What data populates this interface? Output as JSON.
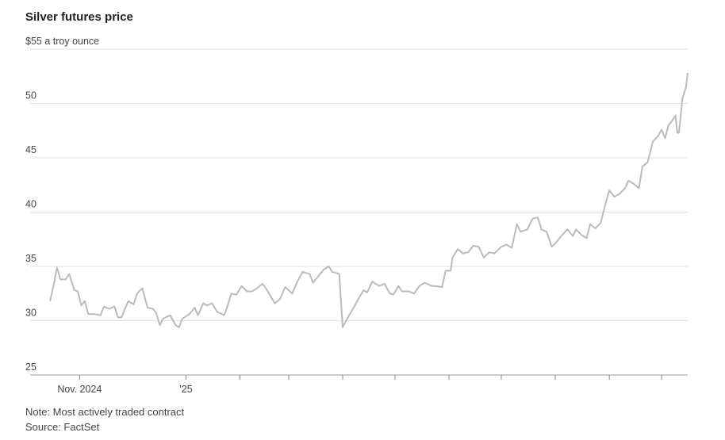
{
  "chart_data": {
    "type": "line",
    "title": "Silver futures price",
    "note": "Note: Most actively traded contract",
    "source": "Source: FactSet",
    "x": [
      "2024-10-15",
      "2024-10-17",
      "2024-10-19",
      "2024-10-21",
      "2024-10-24",
      "2024-10-26",
      "2024-10-29",
      "2024-10-31",
      "2024-11-02",
      "2024-11-04",
      "2024-11-06",
      "2024-11-10",
      "2024-11-13",
      "2024-11-15",
      "2024-11-18",
      "2024-11-21",
      "2024-11-23",
      "2024-11-25",
      "2024-11-27",
      "2024-11-29",
      "2024-12-02",
      "2024-12-04",
      "2024-12-07",
      "2024-12-10",
      "2024-12-13",
      "2024-12-15",
      "2024-12-17",
      "2024-12-19",
      "2024-12-23",
      "2024-12-26",
      "2024-12-28",
      "2024-12-30",
      "2025-01-03",
      "2025-01-06",
      "2025-01-08",
      "2025-01-11",
      "2025-01-13",
      "2025-01-16",
      "2025-01-19",
      "2025-01-23",
      "2025-01-25",
      "2025-01-27",
      "2025-01-30",
      "2025-02-02",
      "2025-02-05",
      "2025-02-08",
      "2025-02-11",
      "2025-02-14",
      "2025-02-17",
      "2025-02-21",
      "2025-02-24",
      "2025-02-27",
      "2025-03-03",
      "2025-03-06",
      "2025-03-09",
      "2025-03-13",
      "2025-03-15",
      "2025-03-19",
      "2025-03-21",
      "2025-03-24",
      "2025-03-26",
      "2025-03-30",
      "2025-04-01",
      "2025-04-04",
      "2025-04-08",
      "2025-04-10",
      "2025-04-13",
      "2025-04-15",
      "2025-04-18",
      "2025-04-22",
      "2025-04-25",
      "2025-04-28",
      "2025-04-30",
      "2025-05-03",
      "2025-05-05",
      "2025-05-09",
      "2025-05-12",
      "2025-05-15",
      "2025-05-18",
      "2025-05-22",
      "2025-05-24",
      "2025-05-28",
      "2025-05-30",
      "2025-06-02",
      "2025-06-03",
      "2025-06-06",
      "2025-06-09",
      "2025-06-12",
      "2025-06-15",
      "2025-06-18",
      "2025-06-21",
      "2025-06-24",
      "2025-06-27",
      "2025-07-01",
      "2025-07-04",
      "2025-07-07",
      "2025-07-10",
      "2025-07-12",
      "2025-07-16",
      "2025-07-19",
      "2025-07-22",
      "2025-07-24",
      "2025-07-27",
      "2025-07-30",
      "2025-08-02",
      "2025-08-05",
      "2025-08-08",
      "2025-08-11",
      "2025-08-13",
      "2025-08-16",
      "2025-08-19",
      "2025-08-21",
      "2025-08-24",
      "2025-08-27",
      "2025-08-30",
      "2025-09-01",
      "2025-09-04",
      "2025-09-07",
      "2025-09-10",
      "2025-09-12",
      "2025-09-15",
      "2025-09-18",
      "2025-09-20",
      "2025-09-23",
      "2025-09-26",
      "2025-09-29",
      "2025-10-01",
      "2025-10-03",
      "2025-10-05",
      "2025-10-07",
      "2025-10-09",
      "2025-10-10",
      "2025-10-11",
      "2025-10-13",
      "2025-10-15",
      "2025-10-16"
    ],
    "series": [
      {
        "name": "Silver",
        "color": "#bbbbbb",
        "values": [
          31.8,
          33.2,
          34.9,
          33.8,
          33.8,
          34.3,
          32.8,
          32.7,
          31.4,
          31.8,
          30.6,
          30.6,
          30.5,
          31.3,
          31.1,
          31.3,
          30.3,
          30.3,
          31.1,
          31.8,
          31.5,
          32.5,
          33.0,
          31.2,
          31.1,
          30.7,
          29.6,
          30.2,
          30.5,
          29.6,
          29.4,
          30.2,
          30.6,
          31.2,
          30.5,
          31.6,
          31.4,
          31.6,
          30.8,
          30.5,
          31.4,
          32.5,
          32.4,
          33.2,
          32.7,
          32.7,
          33.0,
          33.4,
          32.7,
          31.6,
          32.0,
          33.1,
          32.5,
          33.6,
          34.5,
          34.3,
          33.5,
          34.3,
          34.7,
          35.0,
          34.5,
          34.3,
          29.4,
          30.3,
          31.4,
          32.0,
          32.8,
          32.6,
          33.6,
          33.2,
          33.4,
          32.5,
          32.4,
          33.2,
          32.7,
          32.7,
          32.5,
          33.2,
          33.5,
          33.2,
          33.2,
          33.1,
          34.6,
          34.6,
          35.8,
          36.6,
          36.2,
          36.3,
          36.9,
          36.8,
          35.8,
          36.3,
          36.2,
          36.8,
          37.0,
          36.7,
          38.9,
          38.2,
          38.4,
          39.4,
          39.5,
          38.4,
          38.2,
          36.8,
          37.3,
          37.9,
          38.4,
          37.8,
          38.4,
          37.9,
          37.6,
          38.9,
          38.5,
          39.0,
          40.9,
          42.0,
          41.4,
          41.7,
          42.2,
          42.9,
          42.6,
          42.2,
          44.2,
          44.6,
          46.5,
          47.0,
          47.6,
          46.8,
          48.0,
          48.4,
          48.9,
          47.3,
          47.3,
          50.5,
          51.5,
          52.8
        ]
      }
    ],
    "xlim": [
      "2024-10-15",
      "2025-10-16"
    ],
    "xticks": [
      {
        "value": "2024-11-01",
        "label": "Nov. 2024"
      },
      {
        "value": "2025-01-01",
        "label": "’25"
      },
      {
        "value": "2025-02-01"
      },
      {
        "value": "2025-03-01"
      },
      {
        "value": "2025-04-01"
      },
      {
        "value": "2025-05-01"
      },
      {
        "value": "2025-06-01"
      },
      {
        "value": "2025-07-01"
      },
      {
        "value": "2025-08-01"
      },
      {
        "value": "2025-09-01"
      },
      {
        "value": "2025-10-01"
      }
    ],
    "ylim": [
      25,
      55
    ],
    "yticks": [
      25,
      30,
      35,
      40,
      45,
      50,
      {
        "value": 55,
        "label": "$55 a troy ounce"
      }
    ],
    "grid": true
  }
}
